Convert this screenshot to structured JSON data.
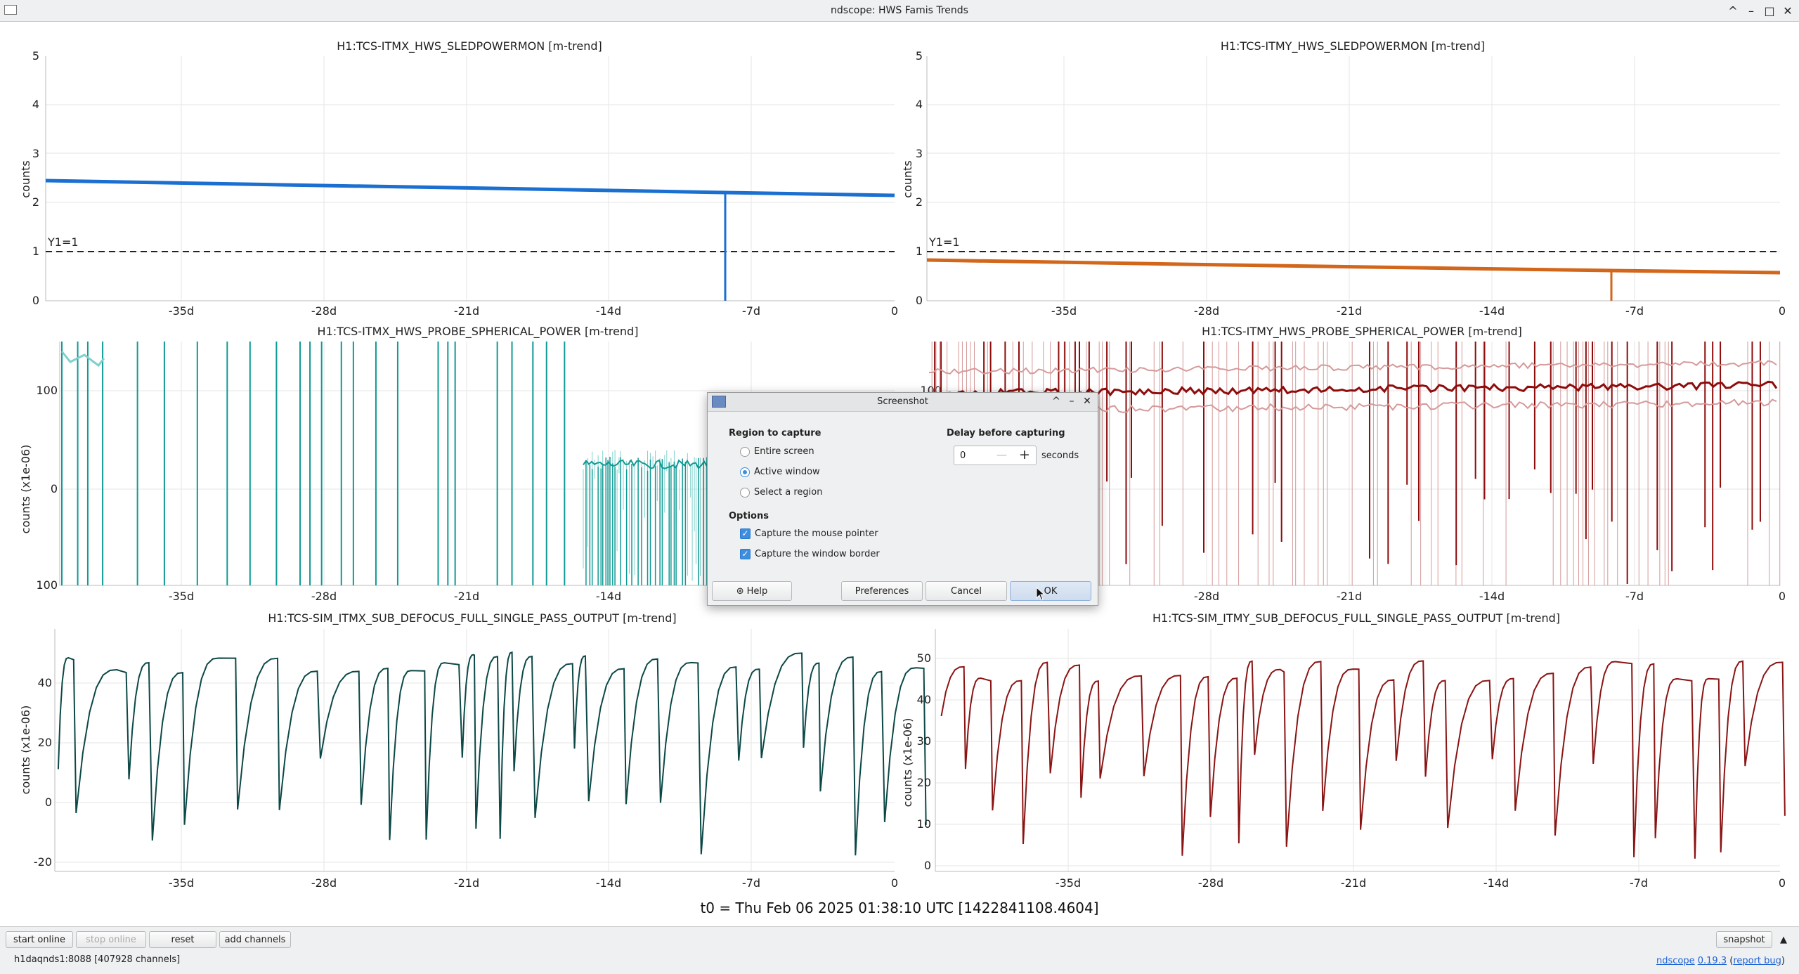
{
  "window": {
    "title": "ndscope: HWS Famis Trends",
    "controls": [
      "^",
      "–",
      "□",
      "✕"
    ]
  },
  "colors": {
    "blue": "#1a6fd1",
    "orange": "#d2661a",
    "teal": "#0f9a94",
    "teal_light": "#7fd0cc",
    "darkred": "#8e0c0c",
    "darkred_light": "#d59a9a",
    "darkteal": "#0b4846",
    "maroon": "#8a1414"
  },
  "plots": [
    {
      "title": "H1:TCS-ITMX_HWS_SLEDPOWERMON [m-trend]",
      "ylabel": "counts",
      "yticks": [
        "0",
        "1",
        "2",
        "3",
        "4",
        "5"
      ],
      "xticks": [
        "-35d",
        "-28d",
        "-21d",
        "-14d",
        "-7d",
        "0"
      ],
      "annotation": "Y1=1"
    },
    {
      "title": "H1:TCS-ITMY_HWS_SLEDPOWERMON [m-trend]",
      "ylabel": "counts",
      "yticks": [
        "0",
        "1",
        "2",
        "3",
        "4",
        "5"
      ],
      "xticks": [
        "-35d",
        "-28d",
        "-21d",
        "-14d",
        "-7d",
        "0"
      ],
      "annotation": "Y1=1"
    },
    {
      "title": "H1:TCS-ITMX_HWS_PROBE_SPHERICAL_POWER [m-trend]",
      "ylabel": "counts (x1e-06)",
      "yticks": [
        "100",
        "0",
        "100"
      ],
      "xticks": [
        "-35d",
        "-28d",
        "-21d",
        "-14d"
      ]
    },
    {
      "title": "H1:TCS-ITMY_HWS_PROBE_SPHERICAL_POWER [m-trend]",
      "ylabel": "",
      "yticks": [
        "100"
      ],
      "xticks": [
        "-28d",
        "-21d",
        "-14d",
        "-7d",
        "0"
      ]
    },
    {
      "title": "H1:TCS-SIM_ITMX_SUB_DEFOCUS_FULL_SINGLE_PASS_OUTPUT [m-trend]",
      "ylabel": "counts (x1e-06)",
      "yticks": [
        "-20",
        "0",
        "20",
        "40"
      ],
      "xticks": [
        "-35d",
        "-28d",
        "-21d",
        "-14d",
        "-7d",
        "0"
      ]
    },
    {
      "title": "H1:TCS-SIM_ITMY_SUB_DEFOCUS_FULL_SINGLE_PASS_OUTPUT [m-trend]",
      "ylabel": "counts (x1e-06)",
      "yticks": [
        "0",
        "10",
        "20",
        "30",
        "40",
        "50"
      ],
      "xticks": [
        "-35d",
        "-28d",
        "-21d",
        "-14d",
        "-7d",
        "0"
      ]
    }
  ],
  "t0_label": "t0 = Thu Feb 06 2025 01:38:10 UTC [1422841108.4604]",
  "toolbar": {
    "start_online": "start online",
    "stop_online": "stop online",
    "reset": "reset",
    "add_channels": "add channels",
    "snapshot": "snapshot",
    "expand": "▲"
  },
  "status": {
    "server": "h1daqnds1:8088  [407928 channels]",
    "app_link": "ndscope",
    "version_link": "0.19.3",
    "report_link": "report bug"
  },
  "dialog": {
    "title": "Screenshot",
    "region_heading": "Region to capture",
    "region_options": [
      "Entire screen",
      "Active window",
      "Select a region"
    ],
    "region_selected": "Active window",
    "delay_heading": "Delay before capturing",
    "delay_value": "0",
    "delay_unit": "seconds",
    "options_heading": "Options",
    "option_pointer": "Capture the mouse pointer",
    "option_border": "Capture the window border",
    "help": "Help",
    "preferences": "Preferences",
    "cancel": "Cancel",
    "ok": "OK"
  }
}
